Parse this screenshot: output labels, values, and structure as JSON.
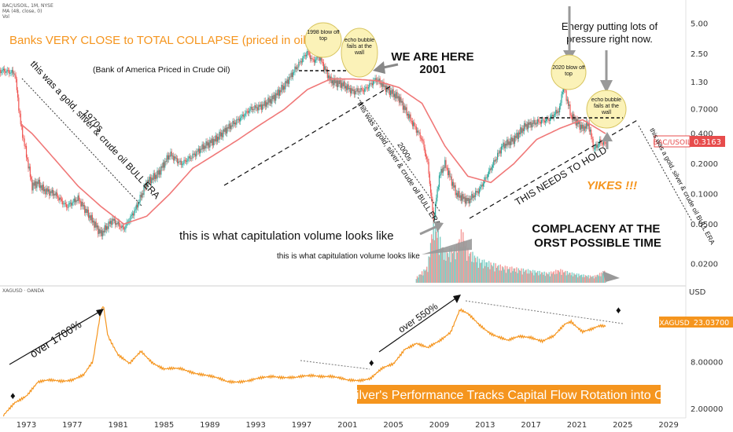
{
  "chart_data": [
    {
      "type": "candlestick",
      "symbol_line": "BAC/USOIL, 1M, NYSE",
      "indicator_line": "MA (48, close, 0)",
      "volume_label": "Vol",
      "title": "Banks VERY CLOSE to TOTAL COLLAPSE (priced in oil)",
      "subtitle": "(Bank of America Priced in Crude Oil)",
      "y_scale": "log",
      "ylim": [
        0.013,
        8
      ],
      "y_ticks": [
        "5.00",
        "2.50",
        "1.30",
        "0.7000",
        "0.400",
        "0.2000",
        "0.1000",
        "0.0500",
        "0.0200"
      ],
      "price_badge": {
        "name": "BAC/USOIL",
        "value": "0.3163"
      },
      "series": [
        {
          "name": "price",
          "x": [
            1970.5,
            1971.5,
            1972.5,
            1973.0,
            1974.0,
            1974.5,
            1975.0,
            1976.0,
            1977.0,
            1978.0,
            1979.0,
            1980.0,
            1981.0,
            1982.0,
            1983.0,
            1984.0,
            1985.0,
            1986.0,
            1987.0,
            1988.0,
            1989.0,
            1990.0,
            1991.0,
            1992.0,
            1993.0,
            1994.0,
            1995.0,
            1996.0,
            1997.0,
            1998.0,
            1998.5,
            1999.0,
            2000.0,
            2001.0,
            2002.0,
            2003.0,
            2004.0,
            2005.0,
            2006.0,
            2007.0,
            2008.0,
            2008.5,
            2009.0,
            2009.5,
            2010.0,
            2011.0,
            2012.0,
            2013.0,
            2014.0,
            2015.0,
            2016.0,
            2017.0,
            2018.0,
            2019.0,
            2020.0,
            2020.3,
            2021.0,
            2022.0,
            2022.5,
            2023.0,
            2023.5,
            2024.0
          ],
          "y": [
            1.65,
            1.7,
            1.6,
            0.5,
            0.12,
            0.13,
            0.11,
            0.1,
            0.075,
            0.09,
            0.06,
            0.04,
            0.055,
            0.045,
            0.07,
            0.13,
            0.16,
            0.25,
            0.2,
            0.24,
            0.3,
            0.35,
            0.45,
            0.55,
            0.7,
            0.75,
            0.9,
            1.2,
            1.8,
            2.6,
            2.1,
            2.4,
            1.35,
            1.25,
            1.05,
            1.1,
            1.4,
            1.1,
            0.9,
            0.55,
            0.35,
            0.2,
            0.055,
            0.15,
            0.2,
            0.1,
            0.085,
            0.11,
            0.18,
            0.3,
            0.35,
            0.48,
            0.52,
            0.55,
            0.7,
            1.25,
            0.6,
            0.45,
            0.5,
            0.28,
            0.33,
            0.3163
          ]
        },
        {
          "name": "MA (48, close, 0)",
          "x": [
            1973,
            1974,
            1976,
            1978,
            1980,
            1982,
            1984,
            1986,
            1988,
            1990,
            1992,
            1994,
            1996,
            1998,
            2000,
            2002,
            2004,
            2006,
            2008,
            2010,
            2012,
            2014,
            2016,
            2018,
            2020,
            2022,
            2024
          ],
          "y": [
            0.5,
            0.4,
            0.22,
            0.12,
            0.075,
            0.05,
            0.06,
            0.1,
            0.18,
            0.25,
            0.35,
            0.5,
            0.7,
            1.1,
            1.4,
            1.4,
            1.35,
            1.15,
            0.8,
            0.3,
            0.15,
            0.13,
            0.2,
            0.35,
            0.45,
            0.55,
            0.4
          ]
        }
      ],
      "volume": {
        "x": [
          2007.5,
          2008.5,
          2009,
          2009.5,
          2010,
          2011,
          2011.5,
          2012,
          2013,
          2015,
          2017,
          2019,
          2020,
          2021,
          2022,
          2023,
          2024
        ],
        "values": [
          0.08,
          0.25,
          1.0,
          0.7,
          0.45,
          0.55,
          0.8,
          0.5,
          0.35,
          0.25,
          0.2,
          0.15,
          0.2,
          0.15,
          0.12,
          0.1,
          0.18
        ]
      }
    },
    {
      "type": "line",
      "symbol_line": "XAGUSD · OANDA",
      "title": "Silver's Performance Tracks Capital Flow Rotation into Oil",
      "y_scale": "log",
      "ylim": [
        1.6,
        70
      ],
      "currency": "USD",
      "y_ticks": [
        "8.00000",
        "2.00000"
      ],
      "price_badge": {
        "name": "XAGUSD",
        "value": "23.03700"
      },
      "series": [
        {
          "name": "XAGUSD",
          "x": [
            1971.5,
            1972.5,
            1973.5,
            1974.5,
            1975.5,
            1976.5,
            1977.5,
            1978.5,
            1979.3,
            1979.9,
            1980.2,
            1980.6,
            1981.5,
            1982.5,
            1983.5,
            1984.5,
            1985.5,
            1987.0,
            1989.0,
            1991.0,
            1993.0,
            1995.0,
            1997.0,
            1998.5,
            2000.0,
            2001.5,
            2002.5,
            2003.5,
            2004.5,
            2005.5,
            2006.5,
            2007.5,
            2008.5,
            2009.5,
            2010.5,
            2011.3,
            2012.0,
            2013.0,
            2014.0,
            2015.5,
            2016.5,
            2017.5,
            2018.5,
            2019.5,
            2020.5,
            2021.0,
            2022.0,
            2022.8,
            2023.5,
            2024.0
          ],
          "y": [
            1.6,
            2.4,
            3.0,
            4.4,
            4.6,
            4.6,
            4.8,
            5.4,
            8.0,
            30,
            45,
            18,
            10,
            7.5,
            11,
            8.0,
            6.5,
            6.5,
            5.5,
            4.5,
            4.6,
            5.3,
            5.0,
            5.4,
            5.3,
            4.6,
            4.7,
            5.0,
            6.5,
            7.5,
            12,
            14,
            12,
            15,
            20,
            38,
            33,
            24,
            19,
            15,
            17,
            17,
            15,
            17,
            25,
            27,
            20,
            21,
            23,
            23.037
          ]
        }
      ]
    }
  ],
  "x_axis": {
    "xlim": [
      1971.2,
      2031.0
    ],
    "ticks": [
      "1973",
      "1977",
      "1981",
      "1985",
      "1989",
      "1993",
      "1997",
      "2001",
      "2005",
      "2009",
      "2013",
      "2017",
      "2021",
      "2025",
      "2029"
    ]
  },
  "annotations": {
    "era_1970s": "this was a gold, silver & crude oil BULL ERA",
    "tag_1970s": "1970s",
    "we_are_here": "WE ARE HERE",
    "we_are_here_year": "2001",
    "bubble_1998": "1998 blow off top",
    "bubble_echo": "echo bubble fails at the wall",
    "era_2000s": "this was a gold, silver & crude oil BULL ERA",
    "tag_2000s": "2000s",
    "energy": "Energy putting lots of pressure right now.",
    "bubble_2020": "2020 blow off top",
    "bubble_echo2": "echo bubble fails at the wall",
    "era_now": "this was a gold, silver & crude oil BULL ERA",
    "needs_to_hold": "THIS NEEDS TO HOLD",
    "yikes": "YIKES !!!",
    "capitulation_big": "this is what capitulation volume looks like",
    "capitulation_small": "this is what capitulation volume looks like",
    "complacency": "COMPLACENY AT THE WORST POSSIBLE TIME",
    "over_1700": "over 1700%",
    "over_550": "over 550%"
  }
}
